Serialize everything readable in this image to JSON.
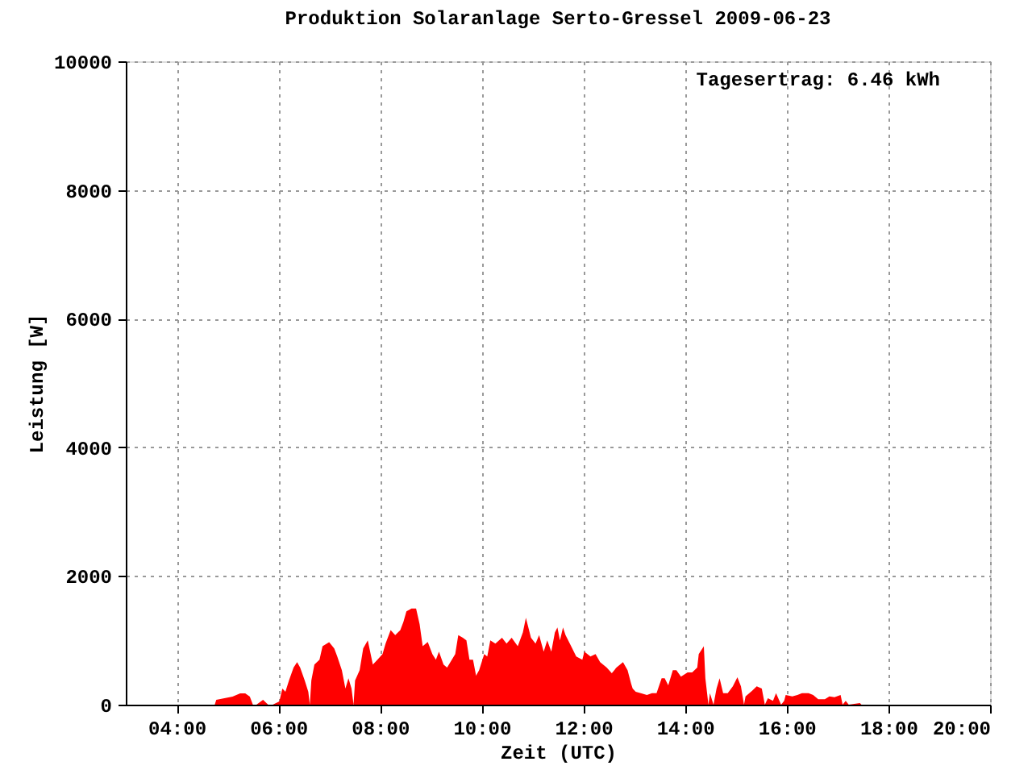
{
  "chart_data": {
    "type": "area",
    "title": "Produktion Solaranlage Serto-Gressel 2009-06-23",
    "xlabel": "Zeit (UTC)",
    "ylabel": "Leistung [W]",
    "annotations": [
      "Tagesertrag: 6.46 kWh"
    ],
    "xlim": [
      3,
      20
    ],
    "xticks": [
      {
        "value": 4,
        "label": "04:00"
      },
      {
        "value": 6,
        "label": "06:00"
      },
      {
        "value": 8,
        "label": "08:00"
      },
      {
        "value": 10,
        "label": "10:00"
      },
      {
        "value": 12,
        "label": "12:00"
      },
      {
        "value": 14,
        "label": "14:00"
      },
      {
        "value": 16,
        "label": "16:00"
      },
      {
        "value": 18,
        "label": "18:00"
      },
      {
        "value": 20,
        "label": "20:00"
      }
    ],
    "ylim": [
      0,
      10000
    ],
    "yticks": [
      0,
      2000,
      4000,
      6000,
      8000,
      10000
    ],
    "grid": true,
    "x": [
      4.75,
      4.78,
      4.94,
      5.1,
      5.25,
      5.35,
      5.44,
      5.5,
      5.57,
      5.7,
      5.8,
      5.89,
      6.02,
      6.08,
      6.14,
      6.21,
      6.3,
      6.37,
      6.43,
      6.52,
      6.59,
      6.62,
      6.65,
      6.71,
      6.81,
      6.87,
      7.0,
      7.1,
      7.16,
      7.25,
      7.32,
      7.38,
      7.44,
      7.48,
      7.51,
      7.6,
      7.67,
      7.76,
      7.86,
      7.95,
      8.05,
      8.11,
      8.21,
      8.3,
      8.4,
      8.46,
      8.52,
      8.62,
      8.71,
      8.78,
      8.84,
      8.94,
      9.03,
      9.1,
      9.16,
      9.25,
      9.32,
      9.48,
      9.54,
      9.63,
      9.7,
      9.76,
      9.83,
      9.89,
      9.95,
      10.05,
      10.11,
      10.17,
      10.27,
      10.4,
      10.49,
      10.59,
      10.71,
      10.81,
      10.87,
      10.97,
      11.06,
      11.13,
      11.22,
      11.29,
      11.37,
      11.44,
      11.49,
      11.54,
      11.6,
      11.65,
      11.76,
      11.86,
      11.98,
      12.02,
      12.14,
      12.24,
      12.33,
      12.46,
      12.56,
      12.65,
      12.78,
      12.87,
      12.94,
      12.97,
      13.03,
      13.13,
      13.25,
      13.35,
      13.44,
      13.54,
      13.6,
      13.67,
      13.76,
      13.83,
      13.92,
      14.05,
      14.14,
      14.24,
      14.27,
      14.37,
      14.4,
      14.46,
      14.49,
      14.56,
      14.62,
      14.68,
      14.75,
      14.84,
      14.94,
      15.03,
      15.1,
      15.16,
      15.19,
      15.32,
      15.41,
      15.51,
      15.57,
      15.63,
      15.73,
      15.79,
      15.89,
      15.95,
      15.98,
      16.11,
      16.21,
      16.3,
      16.43,
      16.52,
      16.62,
      16.75,
      16.84,
      16.94,
      17.06,
      17.1,
      17.16,
      17.22,
      17.44,
      17.47
    ],
    "series": [
      {
        "color": "#ff0000",
        "values": [
          0,
          75,
          100,
          125,
          175,
          175,
          125,
          0,
          0,
          75,
          0,
          0,
          50,
          250,
          200,
          375,
          575,
          660,
          575,
          375,
          200,
          0,
          375,
          625,
          700,
          910,
          970,
          875,
          750,
          535,
          250,
          410,
          250,
          0,
          375,
          535,
          875,
          1000,
          625,
          700,
          785,
          950,
          1160,
          1080,
          1160,
          1285,
          1450,
          1495,
          1495,
          1250,
          910,
          975,
          785,
          700,
          825,
          625,
          575,
          785,
          1080,
          1040,
          1000,
          700,
          700,
          450,
          535,
          785,
          750,
          1000,
          950,
          1040,
          950,
          1040,
          910,
          1120,
          1350,
          1040,
          950,
          1080,
          825,
          1000,
          825,
          1120,
          1200,
          1000,
          1200,
          1080,
          910,
          750,
          700,
          825,
          750,
          785,
          660,
          575,
          490,
          575,
          660,
          535,
          325,
          250,
          200,
          180,
          150,
          180,
          180,
          410,
          410,
          300,
          535,
          535,
          435,
          500,
          500,
          575,
          785,
          910,
          410,
          0,
          180,
          0,
          250,
          410,
          180,
          180,
          285,
          425,
          285,
          0,
          130,
          215,
          285,
          250,
          0,
          100,
          60,
          180,
          0,
          60,
          150,
          130,
          150,
          180,
          180,
          150,
          85,
          85,
          130,
          115,
          150,
          0,
          60,
          0,
          25,
          0
        ]
      }
    ]
  }
}
